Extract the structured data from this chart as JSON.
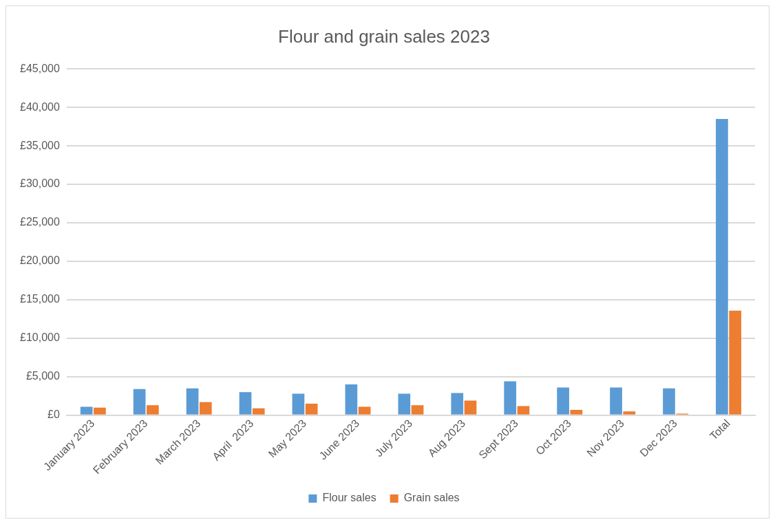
{
  "chart_data": {
    "type": "bar",
    "title": "Flour and grain sales 2023",
    "categories": [
      "January 2023",
      "February 2023",
      "March 2023",
      "April  2023",
      "May 2023",
      "June 2023",
      "July 2023",
      "Aug 2023",
      "Sept 2023",
      "Oct 2023",
      "Nov 2023",
      "Dec 2023",
      "Total"
    ],
    "series": [
      {
        "name": "Flour sales",
        "color": "#5b9bd5",
        "values": [
          1100,
          3400,
          3500,
          3000,
          2800,
          4000,
          2800,
          2900,
          4400,
          3600,
          3600,
          3500,
          38500
        ]
      },
      {
        "name": "Grain sales",
        "color": "#ed7d31",
        "values": [
          1000,
          1300,
          1700,
          900,
          1500,
          1100,
          1300,
          1900,
          1200,
          700,
          500,
          200,
          13600
        ]
      }
    ],
    "ylim": [
      0,
      45000
    ],
    "yticks": [
      {
        "value": 0,
        "label": "£0"
      },
      {
        "value": 5000,
        "label": "£5,000"
      },
      {
        "value": 10000,
        "label": "£10,000"
      },
      {
        "value": 15000,
        "label": "£15,000"
      },
      {
        "value": 20000,
        "label": "£20,000"
      },
      {
        "value": 25000,
        "label": "£25,000"
      },
      {
        "value": 30000,
        "label": "£30,000"
      },
      {
        "value": 35000,
        "label": "£35,000"
      },
      {
        "value": 40000,
        "label": "£40,000"
      },
      {
        "value": 45000,
        "label": "£45,000"
      }
    ],
    "grid": "y",
    "legend": "bottom"
  }
}
